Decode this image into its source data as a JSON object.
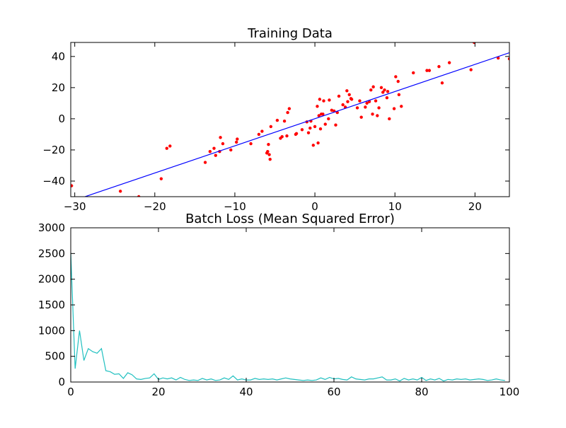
{
  "chart_data": [
    {
      "type": "scatter",
      "title": "Training Data",
      "xlim": [
        -30.5,
        24.3
      ],
      "ylim": [
        -50,
        49
      ],
      "xticks": [
        -30,
        -20,
        -10,
        0,
        10,
        20
      ],
      "xtick_labels": [
        "−30",
        "−20",
        "−10",
        "0",
        "10",
        "20"
      ],
      "yticks": [
        -40,
        -20,
        0,
        20,
        40
      ],
      "ytick_labels": [
        "−40",
        "−20",
        "0",
        "20",
        "40"
      ],
      "grid": false,
      "series": [
        {
          "kind": "points",
          "color": "#ff0000",
          "points": [
            [
              -30.4,
              -43
            ],
            [
              -24.3,
              -46.5
            ],
            [
              -22.0,
              -50
            ],
            [
              -19.2,
              -38.5
            ],
            [
              -18.5,
              -19
            ],
            [
              -18.1,
              -17.5
            ],
            [
              -13.7,
              -28
            ],
            [
              -13.1,
              -21
            ],
            [
              -12.6,
              -19
            ],
            [
              -12.4,
              -23.5
            ],
            [
              -11.9,
              -21
            ],
            [
              -11.8,
              -12
            ],
            [
              -11.5,
              -16
            ],
            [
              -10.5,
              -20
            ],
            [
              -9.8,
              -15
            ],
            [
              -9.7,
              -13
            ],
            [
              -8.0,
              -16
            ],
            [
              -7.0,
              -10
            ],
            [
              -6.6,
              -8
            ],
            [
              -6.0,
              -22
            ],
            [
              -5.9,
              -21
            ],
            [
              -5.8,
              -16.5
            ],
            [
              -5.7,
              -23
            ],
            [
              -5.6,
              -26
            ],
            [
              -5.5,
              -5
            ],
            [
              -4.7,
              -1
            ],
            [
              -4.3,
              -12.5
            ],
            [
              -4.1,
              -11.5
            ],
            [
              -3.8,
              -1.5
            ],
            [
              -3.5,
              -11
            ],
            [
              -3.4,
              4
            ],
            [
              -3.2,
              6.5
            ],
            [
              -2.4,
              -10
            ],
            [
              -2.3,
              -9.5
            ],
            [
              -1.6,
              -7
            ],
            [
              -1.0,
              -2
            ],
            [
              -0.8,
              -9
            ],
            [
              -0.6,
              -6
            ],
            [
              -0.5,
              -1.5
            ],
            [
              -0.2,
              -17
            ],
            [
              0.0,
              -5
            ],
            [
              0.3,
              8
            ],
            [
              0.4,
              -15.5
            ],
            [
              0.5,
              2
            ],
            [
              0.6,
              12.5
            ],
            [
              0.7,
              -6.5
            ],
            [
              0.8,
              3
            ],
            [
              1.0,
              3
            ],
            [
              1.1,
              11.5
            ],
            [
              1.3,
              -3.5
            ],
            [
              1.7,
              0
            ],
            [
              1.8,
              12
            ],
            [
              2.1,
              5.5
            ],
            [
              2.4,
              5
            ],
            [
              2.6,
              -4
            ],
            [
              2.8,
              4
            ],
            [
              3.0,
              14.5
            ],
            [
              3.5,
              9
            ],
            [
              3.8,
              7.5
            ],
            [
              4.0,
              18
            ],
            [
              4.1,
              11
            ],
            [
              4.3,
              15.5
            ],
            [
              4.5,
              13
            ],
            [
              4.6,
              12.5
            ],
            [
              5.3,
              7
            ],
            [
              5.6,
              11.5
            ],
            [
              5.8,
              1
            ],
            [
              6.3,
              7.5
            ],
            [
              6.5,
              10
            ],
            [
              6.8,
              11
            ],
            [
              7.0,
              18.5
            ],
            [
              7.2,
              3
            ],
            [
              7.3,
              20.5
            ],
            [
              7.6,
              11.5
            ],
            [
              7.8,
              2
            ],
            [
              8.0,
              7
            ],
            [
              8.3,
              20
            ],
            [
              8.5,
              17
            ],
            [
              8.7,
              18.5
            ],
            [
              9.0,
              13.5
            ],
            [
              9.1,
              17.5
            ],
            [
              9.3,
              0
            ],
            [
              9.9,
              6.5
            ],
            [
              10.1,
              27
            ],
            [
              10.4,
              24
            ],
            [
              10.5,
              15.5
            ],
            [
              10.8,
              8
            ],
            [
              12.3,
              29.5
            ],
            [
              14.0,
              31
            ],
            [
              14.3,
              31
            ],
            [
              15.5,
              33.5
            ],
            [
              15.9,
              23
            ],
            [
              16.8,
              36
            ],
            [
              19.5,
              31.5
            ],
            [
              19.9,
              49
            ],
            [
              22.9,
              39
            ],
            [
              24.3,
              38.5
            ]
          ]
        },
        {
          "kind": "line",
          "color": "#0000ff",
          "points": [
            [
              -30.5,
              -53.1
            ],
            [
              24.3,
              42.4
            ]
          ]
        }
      ]
    },
    {
      "type": "line",
      "title": "Batch Loss (Mean Squared Error)",
      "xlim": [
        0,
        100
      ],
      "ylim": [
        0,
        3000
      ],
      "xticks": [
        0,
        20,
        40,
        60,
        80,
        100
      ],
      "xtick_labels": [
        "0",
        "20",
        "40",
        "60",
        "80",
        "100"
      ],
      "yticks": [
        0,
        500,
        1000,
        1500,
        2000,
        2500,
        3000
      ],
      "ytick_labels": [
        "0",
        "500",
        "1000",
        "1500",
        "2000",
        "2500",
        "3000"
      ],
      "grid": false,
      "series": [
        {
          "color": "#20c0c0",
          "values": [
            2520,
            260,
            1000,
            420,
            650,
            590,
            560,
            650,
            220,
            200,
            150,
            160,
            70,
            180,
            140,
            60,
            50,
            70,
            80,
            160,
            50,
            80,
            60,
            80,
            40,
            90,
            50,
            30,
            40,
            30,
            70,
            40,
            60,
            30,
            40,
            80,
            50,
            120,
            40,
            60,
            40,
            40,
            70,
            50,
            60,
            50,
            60,
            40,
            60,
            80,
            60,
            50,
            40,
            30,
            40,
            30,
            40,
            80,
            50,
            90,
            60,
            70,
            50,
            40,
            100,
            60,
            50,
            40,
            60,
            60,
            80,
            100,
            40,
            40,
            60,
            20,
            70,
            40,
            60,
            40,
            90,
            30,
            60,
            40,
            70,
            20,
            50,
            40,
            60,
            50,
            60,
            40,
            50,
            60,
            50,
            30,
            40,
            60,
            40,
            30
          ]
        }
      ]
    }
  ]
}
